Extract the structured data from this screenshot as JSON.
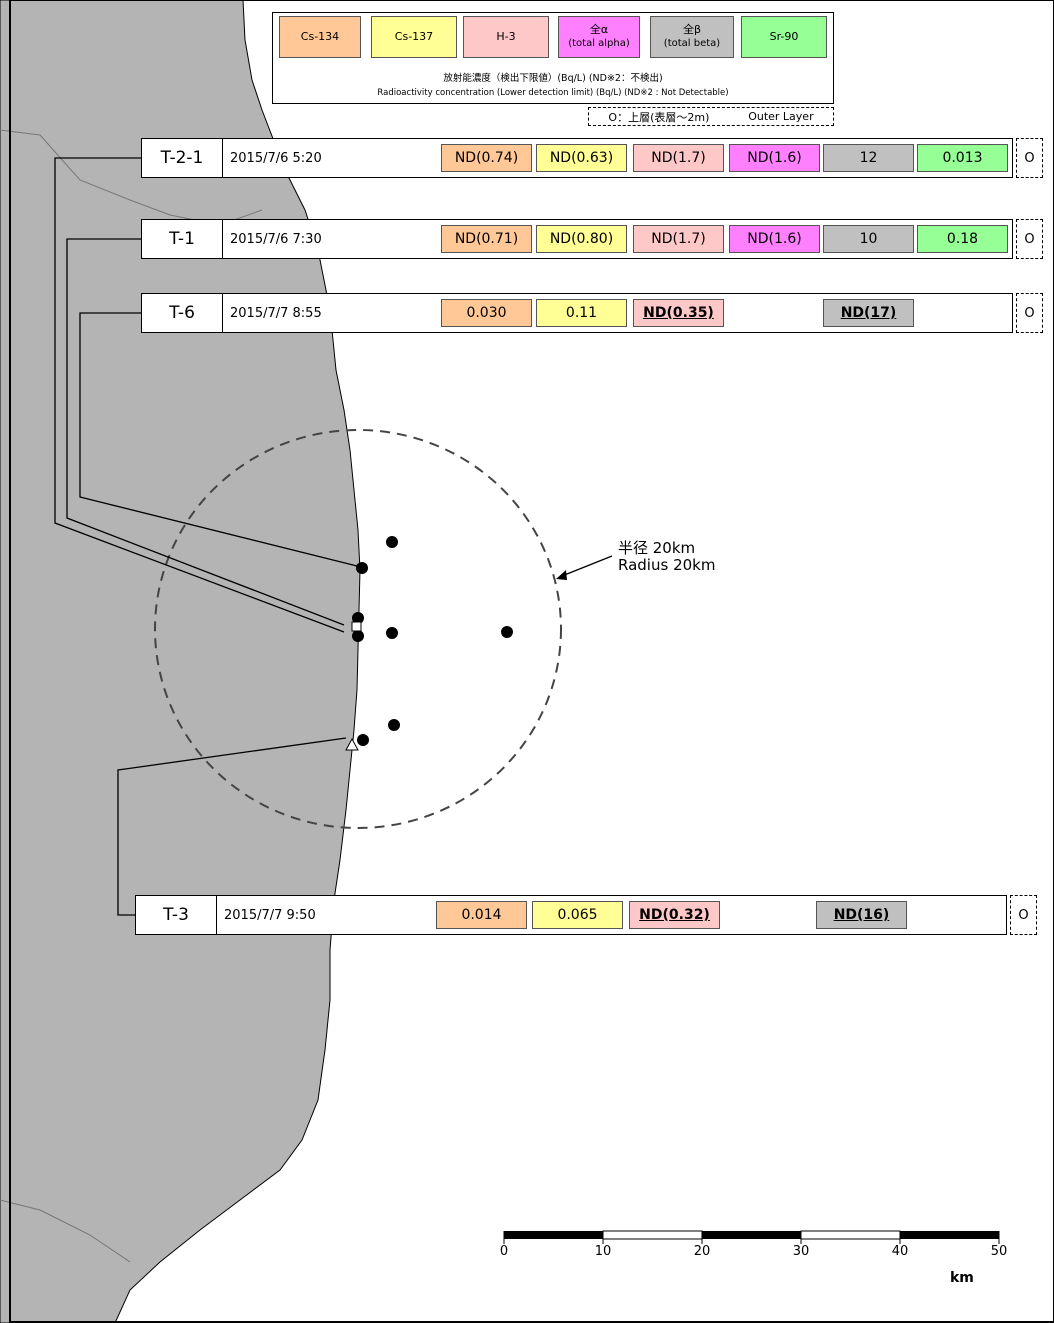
{
  "legend": {
    "nuclides": [
      {
        "name": "Cs-134",
        "sub": "",
        "color": "#ffc896"
      },
      {
        "name": "Cs-137",
        "sub": "",
        "color": "#ffff96"
      },
      {
        "name": "H-3",
        "sub": "",
        "color": "#ffc8c8"
      },
      {
        "name": "全α",
        "sub": "(total alpha)",
        "color": "#ff80ff"
      },
      {
        "name": "全β",
        "sub": "(total beta)",
        "color": "#c0c0c0"
      },
      {
        "name": "Sr-90",
        "sub": "",
        "color": "#96ff96"
      }
    ],
    "line_ja": "放射能濃度（検出下限値）(Bq/L) (ND※2：不検出)",
    "line_en": "Radioactivity concentration (Lower detection limit) (Bq/L) (ND※2 : Not Detectable)",
    "outer_ja": "O：上層(表層～2m)",
    "outer_en": "Outer Layer"
  },
  "stations": [
    {
      "id": "T-2-1",
      "datetime": "2015/7/6  5:20",
      "layer": "O",
      "values": [
        {
          "v": "ND(0.74)",
          "u": false
        },
        {
          "v": "ND(0.63)",
          "u": false
        },
        {
          "v": "ND(1.7)",
          "u": false
        },
        {
          "v": "ND(1.6)",
          "u": false
        },
        {
          "v": "12",
          "u": false
        },
        {
          "v": "0.013",
          "u": false
        }
      ]
    },
    {
      "id": "T-1",
      "datetime": "2015/7/6  7:30",
      "layer": "O",
      "values": [
        {
          "v": "ND(0.71)",
          "u": false
        },
        {
          "v": "ND(0.80)",
          "u": false
        },
        {
          "v": "ND(1.7)",
          "u": false
        },
        {
          "v": "ND(1.6)",
          "u": false
        },
        {
          "v": "10",
          "u": false
        },
        {
          "v": "0.18",
          "u": false
        }
      ]
    },
    {
      "id": "T-6",
      "datetime": "2015/7/7  8:55",
      "layer": "O",
      "values": [
        {
          "v": "0.030",
          "u": false
        },
        {
          "v": "0.11",
          "u": false
        },
        {
          "v": "ND(0.35)",
          "u": true
        },
        null,
        {
          "v": "ND(17)",
          "u": true
        },
        null
      ]
    },
    {
      "id": "T-3",
      "datetime": "2015/7/7  9:50",
      "layer": "O",
      "values": [
        {
          "v": "0.014",
          "u": false
        },
        {
          "v": "0.065",
          "u": false
        },
        {
          "v": "ND(0.32)",
          "u": true
        },
        null,
        {
          "v": "ND(16)",
          "u": true
        },
        null
      ]
    }
  ],
  "radius_label_ja": "半径 20km",
  "radius_label_en": "Radius 20km",
  "scale": {
    "ticks": [
      "0",
      "10",
      "20",
      "30",
      "40",
      "50"
    ],
    "unit": "km"
  },
  "colors": {
    "land": "#b4b4b4",
    "sea": "#ffffff"
  }
}
